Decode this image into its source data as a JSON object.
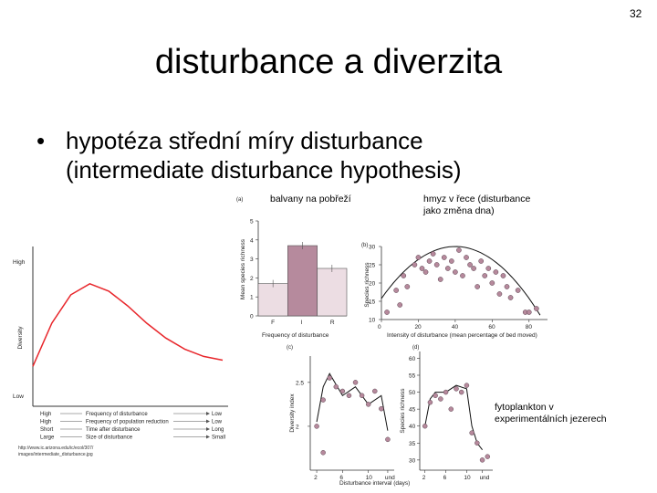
{
  "slide": {
    "number": "32",
    "title": "disturbance a diverzita",
    "bullet_marker": "•",
    "bullet_lines": [
      "hypotéza střední míry disturbance",
      "(intermediate disturbance hypothesis)"
    ]
  },
  "captions": {
    "boulders": "balvany na pobřeží",
    "insects_line1": "hmyz v řece (disturbance",
    "insects_line2": "jako změna dna)",
    "phyto_line1": "fytoplankton v",
    "phyto_line2": "experimentálních jezerech"
  },
  "source_url": {
    "line1": "http://www.ic.arizona.edu/ic/ecol/307/",
    "line2": "images/intermediate_disturbance.jpg"
  },
  "chart_data": [
    {
      "type": "line",
      "ylabel": "Diversity",
      "y_ticks": [
        "High",
        "Low"
      ],
      "x_gradient_rows": [
        {
          "left": "High",
          "label": "Frequency of disturbance",
          "right": "Low"
        },
        {
          "left": "High",
          "label": "Frequency of population reduction",
          "right": "Low"
        },
        {
          "left": "Short",
          "label": "Time after disturbance",
          "right": "Long"
        },
        {
          "left": "Large",
          "label": "Size of disturbance",
          "right": "Small"
        }
      ],
      "x": [
        0,
        0.1,
        0.2,
        0.3,
        0.4,
        0.5,
        0.6,
        0.7,
        0.8,
        0.9,
        1.0
      ],
      "y": [
        0.25,
        0.6,
        0.83,
        0.92,
        0.86,
        0.74,
        0.6,
        0.48,
        0.39,
        0.33,
        0.3
      ],
      "line_color": "#e8262b"
    },
    {
      "type": "bar",
      "panel_label": "(a)",
      "categories": [
        "F",
        "I",
        "R"
      ],
      "values": [
        1.7,
        3.7,
        2.5
      ],
      "ylim": [
        0,
        5
      ],
      "y_ticks": [
        0,
        1,
        2,
        3,
        4,
        5
      ],
      "ylabel": "Mean species richness",
      "xlabel": "Frequency of disturbance",
      "colors": [
        "#ecdde3",
        "#b68a9d",
        "#ecdde3"
      ]
    },
    {
      "type": "scatter",
      "panel_label": "(b)",
      "ylabel": "Species richness",
      "xlabel": "Intensity of disturbance (mean percentage of bed moved)",
      "xlim": [
        0,
        90
      ],
      "ylim": [
        10,
        30
      ],
      "x_ticks": [
        0,
        20,
        40,
        60,
        80
      ],
      "y_ticks": [
        10,
        15,
        20,
        25,
        30
      ],
      "points": [
        [
          8,
          18
        ],
        [
          10,
          14
        ],
        [
          12,
          22
        ],
        [
          14,
          19
        ],
        [
          18,
          25
        ],
        [
          20,
          27
        ],
        [
          22,
          24
        ],
        [
          24,
          23
        ],
        [
          26,
          26
        ],
        [
          28,
          28
        ],
        [
          30,
          25
        ],
        [
          32,
          21
        ],
        [
          34,
          27
        ],
        [
          36,
          24
        ],
        [
          38,
          26
        ],
        [
          40,
          23
        ],
        [
          42,
          29
        ],
        [
          44,
          22
        ],
        [
          46,
          27
        ],
        [
          48,
          25
        ],
        [
          50,
          24
        ],
        [
          52,
          19
        ],
        [
          54,
          26
        ],
        [
          56,
          22
        ],
        [
          58,
          24
        ],
        [
          60,
          20
        ],
        [
          62,
          23
        ],
        [
          64,
          17
        ],
        [
          66,
          22
        ],
        [
          68,
          19
        ],
        [
          70,
          16
        ],
        [
          74,
          18
        ],
        [
          78,
          12
        ],
        [
          80,
          12
        ],
        [
          84,
          13
        ],
        [
          3,
          12
        ]
      ],
      "point_color": "#b6899c",
      "fit": "hump-shaped"
    },
    {
      "type": "line",
      "panel_label": "(c)",
      "ylabel": "Diversity index",
      "xlabel": "Disturbance interval (days)",
      "categories": [
        "2",
        "6",
        "10",
        "und"
      ],
      "ylim": [
        1.5,
        2.8
      ],
      "y_ticks": [
        2,
        2.5
      ],
      "line_x": [
        2,
        3,
        4,
        6,
        8,
        10,
        12,
        13
      ],
      "line_y": [
        2.05,
        2.45,
        2.6,
        2.35,
        2.45,
        2.25,
        2.35,
        1.95
      ],
      "points": [
        [
          2,
          2.0
        ],
        [
          3,
          2.3
        ],
        [
          4,
          2.55
        ],
        [
          5,
          2.45
        ],
        [
          6,
          2.4
        ],
        [
          7,
          2.35
        ],
        [
          8,
          2.5
        ],
        [
          9,
          2.35
        ],
        [
          10,
          2.25
        ],
        [
          11,
          2.4
        ],
        [
          12,
          2.2
        ],
        [
          13,
          1.85
        ],
        [
          3,
          1.7
        ]
      ]
    },
    {
      "type": "line",
      "panel_label": "(d)",
      "ylabel": "Species richness",
      "categories": [
        "2",
        "6",
        "10",
        "und"
      ],
      "ylim": [
        27,
        62
      ],
      "y_ticks": [
        30,
        35,
        40,
        45,
        50,
        55,
        60
      ],
      "line_x": [
        2,
        3,
        4,
        6,
        8,
        10,
        11,
        12,
        13
      ],
      "line_y": [
        40,
        48,
        50,
        50,
        52,
        51,
        40,
        35,
        33
      ],
      "points": [
        [
          2,
          40
        ],
        [
          3,
          47
        ],
        [
          4,
          49
        ],
        [
          5,
          48
        ],
        [
          6,
          50
        ],
        [
          8,
          51
        ],
        [
          9,
          50
        ],
        [
          10,
          52
        ],
        [
          11,
          38
        ],
        [
          12,
          35
        ],
        [
          13,
          30
        ],
        [
          14,
          31
        ],
        [
          7,
          45
        ]
      ]
    }
  ]
}
